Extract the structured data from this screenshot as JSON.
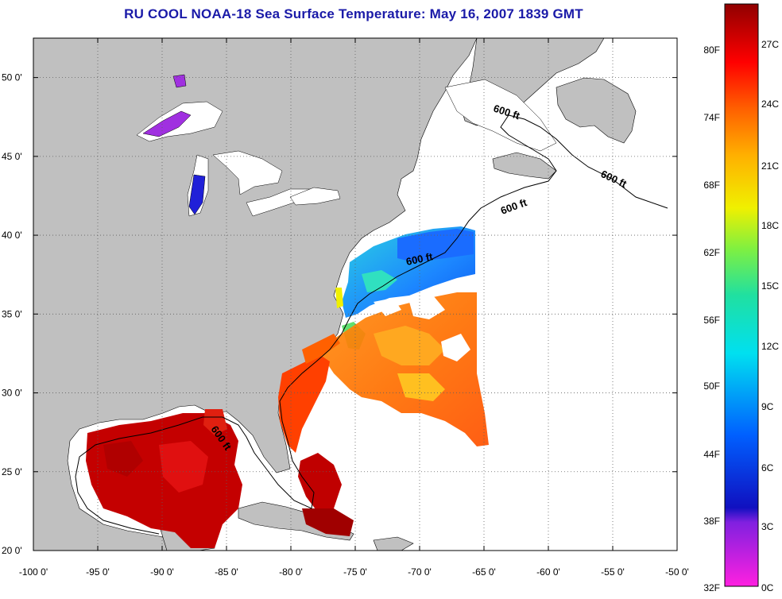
{
  "title": "RU COOL  NOAA-18  Sea Surface Temperature:  May 16, 2007 1839 GMT",
  "map": {
    "lon_range": [
      -100,
      -50
    ],
    "lat_range": [
      20,
      52.5
    ],
    "lon_ticks": [
      "-100 0'",
      "-95 0'",
      "-90 0'",
      "-85 0'",
      "-80 0'",
      "-75 0'",
      "-70 0'",
      "-65 0'",
      "-60 0'",
      "-55 0'",
      "-50 0'"
    ],
    "lat_ticks": [
      "20 0'",
      "25 0'",
      "30 0'",
      "35 0'",
      "40 0'",
      "45 0'",
      "50 0'"
    ],
    "contour_labels": [
      "600 ft",
      "600 ft",
      "600 ft",
      "600 ft",
      "600 ft"
    ],
    "grid": "dotted",
    "colors": {
      "land": "#c0c0c0",
      "ocean_nodata": "#ffffff",
      "title": "#1a1aa8"
    }
  },
  "colorbar": {
    "fahrenheit_labels": [
      "80F",
      "74F",
      "68F",
      "62F",
      "56F",
      "50F",
      "44F",
      "38F",
      "32F"
    ],
    "celsius_labels": [
      "27C",
      "24C",
      "21C",
      "18C",
      "15C",
      "12C",
      "9C",
      "6C",
      "3C",
      "0C"
    ]
  }
}
